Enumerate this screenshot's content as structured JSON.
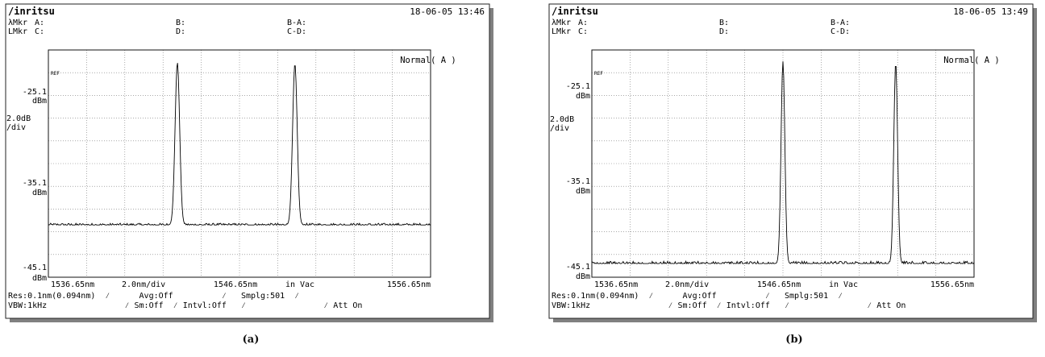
{
  "panels": [
    {
      "caption": "(a)",
      "brand": "/inritsu",
      "datetime": "18-06-05 13:46",
      "marker_rows": [
        {
          "row_label": "λMkr",
          "cols": [
            "A:",
            "B:",
            "B-A:"
          ]
        },
        {
          "row_label": "LMkr",
          "cols": [
            "C:",
            "D:",
            "C-D:"
          ]
        }
      ],
      "mode_label": "Normal( A )",
      "ref_tag": "REF",
      "y_labels": [
        {
          "value": "-25.1",
          "unit": "dBm"
        },
        {
          "value": "-35.1",
          "unit": "dBm"
        },
        {
          "value": "-45.1",
          "unit": "dBm"
        }
      ],
      "scale_label": {
        "line1": "2.0dB",
        "line2": "/div"
      },
      "x_row": {
        "start": "1536.65nm",
        "span": "2.0nm/div",
        "center": "1546.65nm",
        "medium": "in Vac",
        "stop": "1556.65nm"
      },
      "status_line1": "Res:0.1nm(0.094nm)  ⁄      Avg:Off          ⁄   Smplg:501  ⁄",
      "status_line2": "VBW:1kHz                ⁄ Sm:Off  ⁄ Intvl:Off   ⁄                ⁄ Att On"
    },
    {
      "caption": "(b)",
      "brand": "/inritsu",
      "datetime": "18-06-05 13:49",
      "marker_rows": [
        {
          "row_label": "λMkr",
          "cols": [
            "A:",
            "B:",
            "B-A:"
          ]
        },
        {
          "row_label": "LMkr",
          "cols": [
            "C:",
            "D:",
            "C-D:"
          ]
        }
      ],
      "mode_label": "Normal( A )",
      "ref_tag": "REF",
      "y_labels": [
        {
          "value": "-25.1",
          "unit": "dBm"
        },
        {
          "value": "-35.1",
          "unit": "dBm"
        },
        {
          "value": "-45.1",
          "unit": "dBm"
        }
      ],
      "scale_label": {
        "line1": "2.0dB",
        "line2": "/div"
      },
      "x_row": {
        "start": "1536.65nm",
        "span": "2.0nm/div",
        "center": "1546.65nm",
        "medium": "in Vac",
        "stop": "1556.65nm"
      },
      "status_line1": "Res:0.1nm(0.094nm)  ⁄      Avg:Off          ⁄   Smplg:501  ⁄",
      "status_line2": "VBW:1kHz                ⁄ Sm:Off  ⁄ Intvl:Off   ⁄                ⁄ Att On"
    }
  ],
  "chart_data": [
    {
      "type": "line",
      "xlim": [
        1536.65,
        1556.65
      ],
      "ylim": [
        -45.1,
        -25.1
      ],
      "grid": true,
      "noise_floor": -40.5,
      "noise_amplitude": 0.15,
      "peaks": [
        {
          "x": 1543.4,
          "y": -26.2,
          "width": 0.12
        },
        {
          "x": 1549.55,
          "y": -26.3,
          "width": 0.12
        }
      ]
    },
    {
      "type": "line",
      "xlim": [
        1536.65,
        1556.65
      ],
      "ylim": [
        -45.1,
        -25.1
      ],
      "grid": true,
      "noise_floor": -43.9,
      "noise_amplitude": 0.2,
      "peaks": [
        {
          "x": 1546.65,
          "y": -26.1,
          "width": 0.1
        },
        {
          "x": 1552.55,
          "y": -26.2,
          "width": 0.1
        }
      ]
    }
  ]
}
